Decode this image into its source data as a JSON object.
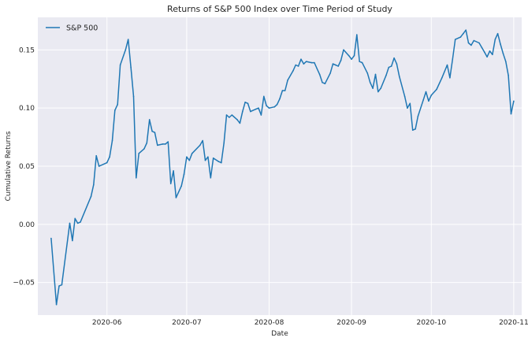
{
  "chart_data": {
    "type": "line",
    "title": "Returns of S&P 500 Index over Time Period of Study",
    "xlabel": "Date",
    "ylabel": "Cumulative Returns",
    "legend": {
      "placement": "top-left",
      "entries": [
        "S&P 500"
      ]
    },
    "grid": true,
    "xlim": [
      "2020-05-06",
      "2020-11-04"
    ],
    "ylim": [
      -0.078,
      0.178
    ],
    "x_ticks": [
      "2020-06",
      "2020-07",
      "2020-08",
      "2020-09",
      "2020-10",
      "2020-11"
    ],
    "y_ticks": [
      "−0.05",
      "0.00",
      "0.05",
      "0.10",
      "0.15"
    ],
    "series": [
      {
        "name": "S&P 500",
        "color": "#1f77b4",
        "points": [
          [
            "2020-05-11",
            -0.012
          ],
          [
            "2020-05-13",
            -0.069
          ],
          [
            "2020-05-14",
            -0.053
          ],
          [
            "2020-05-15",
            -0.052
          ],
          [
            "2020-05-18",
            0.001
          ],
          [
            "2020-05-19",
            -0.014
          ],
          [
            "2020-05-20",
            0.005
          ],
          [
            "2020-05-21",
            0.001
          ],
          [
            "2020-05-22",
            0.002
          ],
          [
            "2020-05-26",
            0.024
          ],
          [
            "2020-05-27",
            0.034
          ],
          [
            "2020-05-28",
            0.059
          ],
          [
            "2020-05-29",
            0.05
          ],
          [
            "2020-06-01",
            0.053
          ],
          [
            "2020-06-02",
            0.058
          ],
          [
            "2020-06-03",
            0.072
          ],
          [
            "2020-06-04",
            0.098
          ],
          [
            "2020-06-05",
            0.103
          ],
          [
            "2020-06-06",
            0.137
          ],
          [
            "2020-06-08",
            0.15
          ],
          [
            "2020-06-09",
            0.159
          ],
          [
            "2020-06-10",
            0.135
          ],
          [
            "2020-06-11",
            0.11
          ],
          [
            "2020-06-12",
            0.04
          ],
          [
            "2020-06-13",
            0.061
          ],
          [
            "2020-06-15",
            0.065
          ],
          [
            "2020-06-16",
            0.07
          ],
          [
            "2020-06-17",
            0.09
          ],
          [
            "2020-06-18",
            0.08
          ],
          [
            "2020-06-19",
            0.079
          ],
          [
            "2020-06-20",
            0.068
          ],
          [
            "2020-06-22",
            0.069
          ],
          [
            "2020-06-23",
            0.069
          ],
          [
            "2020-06-24",
            0.071
          ],
          [
            "2020-06-25",
            0.035
          ],
          [
            "2020-06-26",
            0.046
          ],
          [
            "2020-06-27",
            0.023
          ],
          [
            "2020-06-29",
            0.033
          ],
          [
            "2020-06-30",
            0.043
          ],
          [
            "2020-07-01",
            0.058
          ],
          [
            "2020-07-02",
            0.055
          ],
          [
            "2020-07-03",
            0.061
          ],
          [
            "2020-07-06",
            0.068
          ],
          [
            "2020-07-07",
            0.072
          ],
          [
            "2020-07-08",
            0.055
          ],
          [
            "2020-07-09",
            0.058
          ],
          [
            "2020-07-10",
            0.04
          ],
          [
            "2020-07-11",
            0.057
          ],
          [
            "2020-07-13",
            0.054
          ],
          [
            "2020-07-14",
            0.053
          ],
          [
            "2020-07-15",
            0.07
          ],
          [
            "2020-07-16",
            0.094
          ],
          [
            "2020-07-17",
            0.092
          ],
          [
            "2020-07-18",
            0.094
          ],
          [
            "2020-07-20",
            0.09
          ],
          [
            "2020-07-21",
            0.087
          ],
          [
            "2020-07-22",
            0.097
          ],
          [
            "2020-07-23",
            0.105
          ],
          [
            "2020-07-24",
            0.104
          ],
          [
            "2020-07-25",
            0.097
          ],
          [
            "2020-07-27",
            0.099
          ],
          [
            "2020-07-28",
            0.1
          ],
          [
            "2020-07-29",
            0.094
          ],
          [
            "2020-07-30",
            0.11
          ],
          [
            "2020-07-31",
            0.102
          ],
          [
            "2020-08-01",
            0.1
          ],
          [
            "2020-08-03",
            0.101
          ],
          [
            "2020-08-04",
            0.103
          ],
          [
            "2020-08-05",
            0.108
          ],
          [
            "2020-08-06",
            0.115
          ],
          [
            "2020-08-07",
            0.115
          ],
          [
            "2020-08-08",
            0.124
          ],
          [
            "2020-08-10",
            0.132
          ],
          [
            "2020-08-11",
            0.137
          ],
          [
            "2020-08-12",
            0.136
          ],
          [
            "2020-08-13",
            0.142
          ],
          [
            "2020-08-14",
            0.138
          ],
          [
            "2020-08-15",
            0.14
          ],
          [
            "2020-08-17",
            0.139
          ],
          [
            "2020-08-18",
            0.139
          ],
          [
            "2020-08-19",
            0.134
          ],
          [
            "2020-08-20",
            0.129
          ],
          [
            "2020-08-21",
            0.122
          ],
          [
            "2020-08-22",
            0.121
          ],
          [
            "2020-08-24",
            0.13
          ],
          [
            "2020-08-25",
            0.138
          ],
          [
            "2020-08-26",
            0.137
          ],
          [
            "2020-08-27",
            0.136
          ],
          [
            "2020-08-28",
            0.141
          ],
          [
            "2020-08-29",
            0.15
          ],
          [
            "2020-08-31",
            0.145
          ],
          [
            "2020-09-01",
            0.142
          ],
          [
            "2020-09-02",
            0.145
          ],
          [
            "2020-09-03",
            0.163
          ],
          [
            "2020-09-04",
            0.14
          ],
          [
            "2020-09-05",
            0.139
          ],
          [
            "2020-09-07",
            0.13
          ],
          [
            "2020-09-08",
            0.122
          ],
          [
            "2020-09-09",
            0.117
          ],
          [
            "2020-09-10",
            0.129
          ],
          [
            "2020-09-11",
            0.114
          ],
          [
            "2020-09-12",
            0.117
          ],
          [
            "2020-09-14",
            0.128
          ],
          [
            "2020-09-15",
            0.135
          ],
          [
            "2020-09-16",
            0.136
          ],
          [
            "2020-09-17",
            0.143
          ],
          [
            "2020-09-18",
            0.138
          ],
          [
            "2020-09-19",
            0.127
          ],
          [
            "2020-09-21",
            0.11
          ],
          [
            "2020-09-22",
            0.1
          ],
          [
            "2020-09-23",
            0.104
          ],
          [
            "2020-09-24",
            0.081
          ],
          [
            "2020-09-25",
            0.082
          ],
          [
            "2020-09-26",
            0.093
          ],
          [
            "2020-09-28",
            0.107
          ],
          [
            "2020-09-29",
            0.114
          ],
          [
            "2020-09-30",
            0.106
          ],
          [
            "2020-10-01",
            0.111
          ],
          [
            "2020-10-03",
            0.116
          ],
          [
            "2020-10-05",
            0.126
          ],
          [
            "2020-10-07",
            0.137
          ],
          [
            "2020-10-08",
            0.126
          ],
          [
            "2020-10-09",
            0.142
          ],
          [
            "2020-10-10",
            0.159
          ],
          [
            "2020-10-12",
            0.161
          ],
          [
            "2020-10-13",
            0.164
          ],
          [
            "2020-10-14",
            0.167
          ],
          [
            "2020-10-15",
            0.156
          ],
          [
            "2020-10-16",
            0.154
          ],
          [
            "2020-10-17",
            0.158
          ],
          [
            "2020-10-19",
            0.156
          ],
          [
            "2020-10-20",
            0.152
          ],
          [
            "2020-10-21",
            0.148
          ],
          [
            "2020-10-22",
            0.144
          ],
          [
            "2020-10-23",
            0.149
          ],
          [
            "2020-10-24",
            0.146
          ],
          [
            "2020-10-25",
            0.159
          ],
          [
            "2020-10-26",
            0.164
          ],
          [
            "2020-10-27",
            0.155
          ],
          [
            "2020-10-28",
            0.147
          ],
          [
            "2020-10-29",
            0.14
          ],
          [
            "2020-10-30",
            0.128
          ],
          [
            "2020-10-31",
            0.095
          ],
          [
            "2020-11-01",
            0.106
          ]
        ]
      }
    ]
  }
}
